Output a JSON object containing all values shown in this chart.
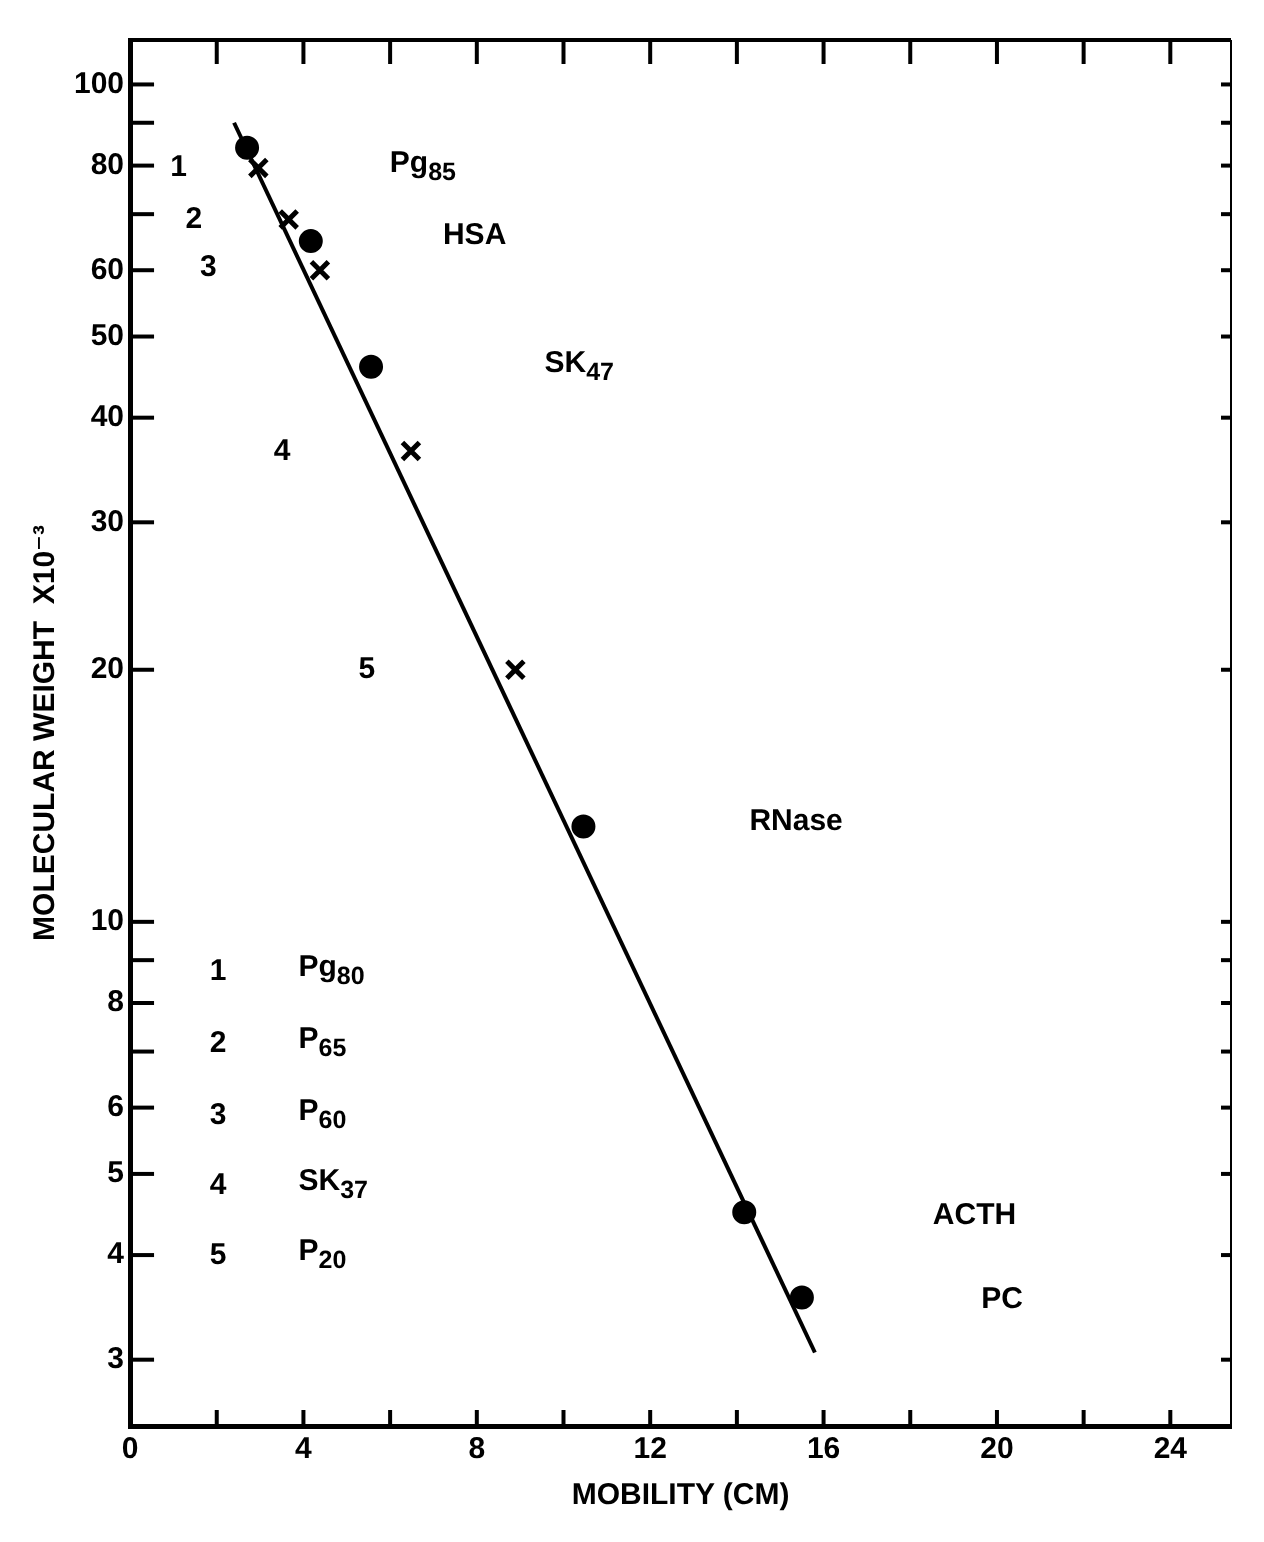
{
  "chart_data": {
    "type": "scatter",
    "xlabel": "MOBILITY (CM)",
    "ylabel": "MOLECULAR WEIGHT  X10⁻³",
    "log": "y",
    "grid": false,
    "xlim": [
      0,
      25.4
    ],
    "xticks": [
      0,
      {
        "value": 2,
        "label": null
      },
      4,
      {
        "value": 6,
        "label": null
      },
      8,
      {
        "value": 10,
        "label": null
      },
      12,
      {
        "value": 14,
        "label": null
      },
      16,
      {
        "value": 18,
        "label": null
      },
      20,
      {
        "value": 22,
        "label": null
      },
      24
    ],
    "ylim": [
      2.5,
      113
    ],
    "yticks": [
      3,
      4,
      5,
      6,
      {
        "value": 7,
        "label": null
      },
      8,
      {
        "value": 9,
        "label": null
      },
      10,
      20,
      30,
      40,
      50,
      60,
      {
        "value": 70,
        "label": null
      },
      80,
      {
        "value": 90,
        "label": null
      },
      100
    ],
    "series": [
      {
        "marker": "circle",
        "color": "#000000",
        "x": [
          2.7,
          4.17,
          5.56,
          10.46,
          14.17,
          15.5
        ],
        "values": [
          84,
          65,
          46,
          13,
          4.5,
          3.56
        ]
      },
      {
        "marker": "cross",
        "color": "#000000",
        "x": [
          2.96,
          3.66,
          4.38,
          6.48,
          8.89
        ],
        "values": [
          79.5,
          69,
          60,
          36.5,
          20
        ]
      },
      {
        "type": "line",
        "marker": "none",
        "line_style": "solid",
        "color": "#000000",
        "x": [
          2.4,
          15.8
        ],
        "values": [
          90,
          3.06
        ]
      }
    ],
    "annotations": [
      "1",
      "2",
      "3",
      "4",
      "5",
      "Pg$_{85}$",
      "HSA",
      "SK$_{47}$",
      "RNase",
      "ACTH",
      "PC",
      "1 Pg$_{80}$",
      "2 P$_{65}$",
      "3 P$_{60}$",
      "4 SK$_{37}$",
      "5 P$_{20}$"
    ]
  }
}
